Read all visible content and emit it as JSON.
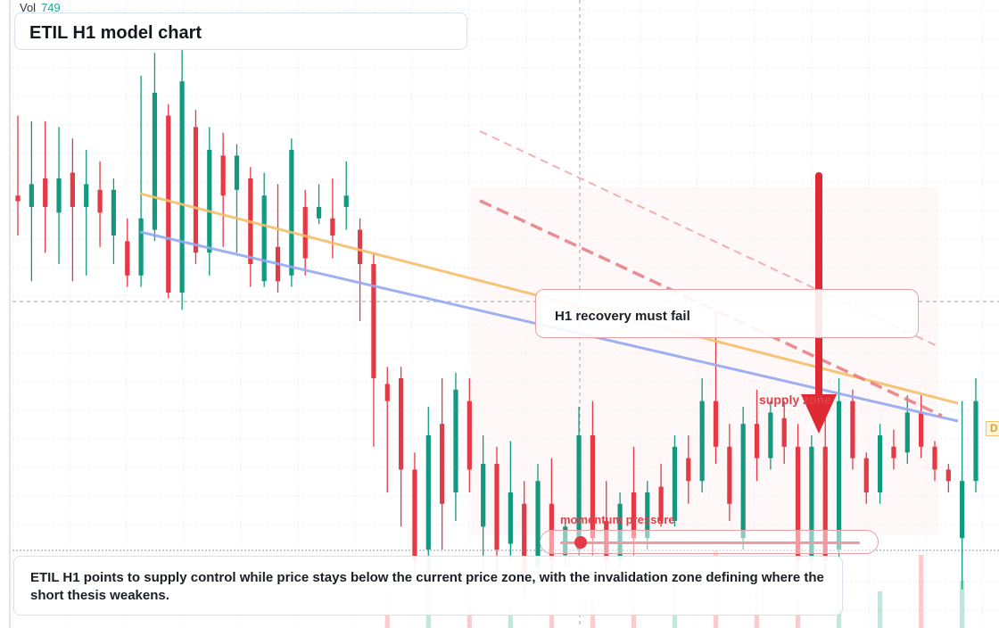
{
  "header": {
    "vol_label": "Vol",
    "vol_value": "749",
    "title": "ETIL H1 model chart"
  },
  "callout": {
    "text": "H1 recovery must fail"
  },
  "supply_label": "supply zone",
  "momentum": {
    "label": "momentum pressure",
    "level": 0.05
  },
  "note": {
    "text": "ETIL H1 points to supply control while price stays below the current price zone, with the invalidation zone defining where the short thesis weakens."
  },
  "right_tag": "D",
  "colors": {
    "up": "#12997f",
    "down": "#e53945",
    "ema_fast": "#f6bf6a",
    "ema_slow": "#94a9f0",
    "arrow": "#e02a33"
  },
  "chart_data": {
    "type": "candlestick",
    "title": "ETIL H1 model chart",
    "ylim": [
      0,
      100
    ],
    "candles": [
      {
        "o": 72,
        "c": 71,
        "h": 86,
        "l": 65
      },
      {
        "o": 70,
        "c": 74,
        "h": 85,
        "l": 57
      },
      {
        "o": 75,
        "c": 70,
        "h": 85,
        "l": 62
      },
      {
        "o": 69,
        "c": 75,
        "h": 84,
        "l": 60
      },
      {
        "o": 76,
        "c": 70,
        "h": 82,
        "l": 57
      },
      {
        "o": 70,
        "c": 74,
        "h": 80,
        "l": 58
      },
      {
        "o": 73,
        "c": 69,
        "h": 78,
        "l": 63
      },
      {
        "o": 65,
        "c": 73,
        "h": 75,
        "l": 60
      },
      {
        "o": 64,
        "c": 58,
        "h": 68,
        "l": 56
      },
      {
        "o": 58,
        "c": 68,
        "h": 93,
        "l": 56
      },
      {
        "o": 66,
        "c": 90,
        "h": 97,
        "l": 64
      },
      {
        "o": 86,
        "c": 55,
        "h": 88,
        "l": 54
      },
      {
        "o": 55,
        "c": 92,
        "h": 98,
        "l": 52
      },
      {
        "o": 84,
        "c": 62,
        "h": 87,
        "l": 60
      },
      {
        "o": 62,
        "c": 80,
        "h": 84,
        "l": 58
      },
      {
        "o": 79,
        "c": 72,
        "h": 83,
        "l": 63
      },
      {
        "o": 73,
        "c": 79,
        "h": 81,
        "l": 62
      },
      {
        "o": 75,
        "c": 60,
        "h": 77,
        "l": 56
      },
      {
        "o": 57,
        "c": 72,
        "h": 76,
        "l": 56
      },
      {
        "o": 63,
        "c": 57,
        "h": 74,
        "l": 55
      },
      {
        "o": 58,
        "c": 80,
        "h": 82,
        "l": 56
      },
      {
        "o": 70,
        "c": 61,
        "h": 73,
        "l": 58
      },
      {
        "o": 68,
        "c": 70,
        "h": 74,
        "l": 67
      },
      {
        "o": 68,
        "c": 65,
        "h": 75,
        "l": 61
      },
      {
        "o": 70,
        "c": 72,
        "h": 78,
        "l": 66
      },
      {
        "o": 66,
        "c": 60,
        "h": 68,
        "l": 50
      },
      {
        "o": 60,
        "c": 40,
        "h": 62,
        "l": 28
      },
      {
        "o": 39,
        "c": 36,
        "h": 42,
        "l": 20
      },
      {
        "o": 40,
        "c": 24,
        "h": 42,
        "l": 14
      },
      {
        "o": 24,
        "c": 8,
        "h": 27,
        "l": 5
      },
      {
        "o": 10,
        "c": 30,
        "h": 35,
        "l": 6
      },
      {
        "o": 32,
        "c": 18,
        "h": 40,
        "l": 10
      },
      {
        "o": 20,
        "c": 38,
        "h": 41,
        "l": 15
      },
      {
        "o": 36,
        "c": 24,
        "h": 40,
        "l": 20
      },
      {
        "o": 14,
        "c": 25,
        "h": 30,
        "l": 5
      },
      {
        "o": 25,
        "c": 10,
        "h": 28,
        "l": 6
      },
      {
        "o": 11,
        "c": 20,
        "h": 29,
        "l": 8
      },
      {
        "o": 18,
        "c": 5,
        "h": 22,
        "l": 2
      },
      {
        "o": 7,
        "c": 22,
        "h": 25,
        "l": 5
      },
      {
        "o": 18,
        "c": 8,
        "h": 26,
        "l": 6
      },
      {
        "o": 9,
        "c": 14,
        "h": 15,
        "l": 7
      },
      {
        "o": 10,
        "c": 30,
        "h": 35,
        "l": 9
      },
      {
        "o": 30,
        "c": 12,
        "h": 36,
        "l": 9
      },
      {
        "o": 15,
        "c": 8,
        "h": 22,
        "l": 6
      },
      {
        "o": 8,
        "c": 18,
        "h": 20,
        "l": 7
      },
      {
        "o": 20,
        "c": 12,
        "h": 28,
        "l": 9
      },
      {
        "o": 12,
        "c": 20,
        "h": 22,
        "l": 10
      },
      {
        "o": 21,
        "c": 15,
        "h": 25,
        "l": 14
      },
      {
        "o": 15,
        "c": 28,
        "h": 30,
        "l": 14
      },
      {
        "o": 26,
        "c": 22,
        "h": 30,
        "l": 18
      },
      {
        "o": 22,
        "c": 36,
        "h": 40,
        "l": 20
      },
      {
        "o": 36,
        "c": 28,
        "h": 52,
        "l": 25
      },
      {
        "o": 28,
        "c": 18,
        "h": 32,
        "l": 15
      },
      {
        "o": 12,
        "c": 32,
        "h": 35,
        "l": 10
      },
      {
        "o": 32,
        "c": 26,
        "h": 38,
        "l": 22
      },
      {
        "o": 26,
        "c": 34,
        "h": 36,
        "l": 24
      },
      {
        "o": 33,
        "c": 28,
        "h": 36,
        "l": 25
      },
      {
        "o": 28,
        "c": 8,
        "h": 32,
        "l": 6
      },
      {
        "o": 8,
        "c": 28,
        "h": 30,
        "l": 6
      },
      {
        "o": 28,
        "c": 8,
        "h": 34,
        "l": 6
      },
      {
        "o": 10,
        "c": 36,
        "h": 40,
        "l": 8
      },
      {
        "o": 36,
        "c": 26,
        "h": 38,
        "l": 24
      },
      {
        "o": 26,
        "c": 20,
        "h": 27,
        "l": 18
      },
      {
        "o": 20,
        "c": 30,
        "h": 32,
        "l": 18
      },
      {
        "o": 28,
        "c": 26,
        "h": 31,
        "l": 24
      },
      {
        "o": 27,
        "c": 34,
        "h": 37,
        "l": 25
      },
      {
        "o": 34,
        "c": 28,
        "h": 37,
        "l": 26
      },
      {
        "o": 28,
        "c": 24,
        "h": 29,
        "l": 22
      },
      {
        "o": 24,
        "c": 22,
        "h": 25,
        "l": 20
      },
      {
        "o": 12,
        "c": 22,
        "h": 36,
        "l": 3
      },
      {
        "o": 22,
        "c": 36,
        "h": 40,
        "l": 20
      }
    ],
    "ema_fast": [
      [
        0.01,
        0.77
      ],
      [
        0.72,
        0.45
      ],
      [
        1.0,
        0.41
      ]
    ],
    "ema_slow": [
      [
        0.01,
        0.75
      ],
      [
        0.72,
        0.42
      ],
      [
        1.0,
        0.38
      ]
    ]
  }
}
